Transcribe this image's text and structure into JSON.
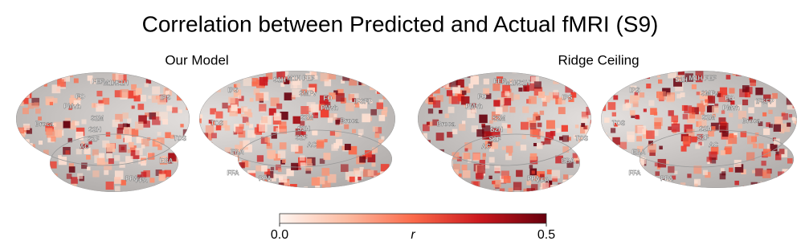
{
  "header": {
    "title": "Correlation between Predicted and Actual fMRI (S9)"
  },
  "panels": [
    {
      "title": "Our Model",
      "left_labels": [
        "FEF",
        "M1H",
        "S1H",
        "FO",
        "PMvh",
        "Broca",
        "S2M",
        "S2H",
        "S2F",
        "AC",
        "IPS",
        "TOS",
        "EBA",
        "FFA",
        "PPA"
      ],
      "right_labels": [
        "IPS",
        "S1H",
        "M1H",
        "FEF",
        "SMFv",
        "FO",
        "PMvh",
        "IFSFP",
        "Broca",
        "S2M",
        "S2H",
        "S2F",
        "AC",
        "TOS",
        "EBA",
        "FFA",
        "PPA"
      ]
    },
    {
      "title": "Ridge Ceiling",
      "left_labels": [
        "FEF",
        "M1H",
        "S1H",
        "FO",
        "PMvh",
        "Broca",
        "S2M",
        "S2H",
        "S2F",
        "AC",
        "IPS",
        "TOS",
        "EBA",
        "FFA",
        "PPA"
      ],
      "right_labels": [
        "IPS",
        "S1H",
        "M1H",
        "FEF",
        "SMFv",
        "FO",
        "PMvh",
        "IFSFP",
        "Broca",
        "S2M",
        "S2H",
        "S2F",
        "AC",
        "TOS",
        "EBA",
        "FFA",
        "PPA"
      ]
    }
  ],
  "colorbar": {
    "label": "r",
    "lim": [
      0,
      0.5
    ],
    "ticks": [
      {
        "value": 0,
        "label": "0.0"
      },
      {
        "value": 0.5,
        "label": "0.5"
      }
    ]
  }
}
